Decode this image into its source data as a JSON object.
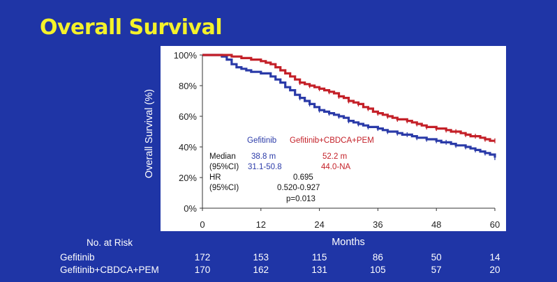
{
  "slide_title": "Overall Survival",
  "colors": {
    "background": "#1f35a6",
    "title": "#f4f22a",
    "plot_bg": "#ffffff",
    "gefitinib": "#2a3aa8",
    "combo": "#c42028",
    "text_dark": "#111111"
  },
  "chart_data": {
    "type": "line",
    "title": "Overall Survival",
    "xlabel": "Months",
    "ylabel": "Overall Survival (%)",
    "xlim": [
      0,
      60
    ],
    "ylim": [
      0,
      100
    ],
    "x_ticks": [
      0,
      12,
      24,
      36,
      48,
      60
    ],
    "y_ticks": [
      0,
      20,
      40,
      60,
      80,
      100
    ],
    "y_tick_labels": [
      "0%",
      "20%",
      "40%",
      "60%",
      "80%",
      "100%"
    ],
    "series": [
      {
        "name": "Gefitinib",
        "color": "#2a3aa8",
        "x": [
          0,
          2,
          4,
          5,
          6,
          7,
          8,
          9,
          10,
          11,
          12,
          13,
          14,
          15,
          16,
          17,
          18,
          19,
          20,
          21,
          22,
          23,
          24,
          25,
          26,
          27,
          28,
          29,
          30,
          31,
          32,
          33,
          34,
          35,
          36,
          37,
          38,
          39,
          40,
          41,
          42,
          43,
          44,
          45,
          46,
          47,
          48,
          49,
          50,
          51,
          52,
          53,
          54,
          55,
          56,
          57,
          58,
          59,
          60
        ],
        "y": [
          100,
          100,
          99,
          97,
          94,
          92,
          91,
          90,
          89,
          89,
          88,
          88,
          86,
          84,
          82,
          79,
          77,
          74,
          72,
          70,
          68,
          66,
          64,
          63,
          62,
          61,
          60,
          59,
          57,
          56,
          55,
          54,
          53,
          53,
          52,
          51,
          50,
          50,
          49,
          48,
          48,
          47,
          46,
          46,
          45,
          45,
          44,
          43,
          43,
          42,
          41,
          41,
          40,
          39,
          38,
          37,
          36,
          35,
          33
        ]
      },
      {
        "name": "Gefitinib+CBDCA+PEM",
        "color": "#c42028",
        "x": [
          0,
          4,
          6,
          7,
          8,
          9,
          10,
          11,
          12,
          13,
          14,
          15,
          16,
          17,
          18,
          19,
          20,
          21,
          22,
          23,
          24,
          25,
          26,
          27,
          28,
          29,
          30,
          31,
          32,
          33,
          34,
          35,
          36,
          37,
          38,
          39,
          40,
          41,
          42,
          43,
          44,
          45,
          46,
          47,
          48,
          49,
          50,
          51,
          52,
          53,
          54,
          55,
          56,
          57,
          58,
          59,
          60
        ],
        "y": [
          100,
          100,
          99,
          99,
          98,
          98,
          97,
          97,
          96,
          95,
          94,
          92,
          90,
          88,
          86,
          84,
          82,
          81,
          80,
          79,
          78,
          77,
          76,
          75,
          73,
          72,
          70,
          69,
          68,
          66,
          65,
          63,
          62,
          61,
          60,
          59,
          58,
          58,
          57,
          56,
          55,
          54,
          53,
          53,
          52,
          52,
          51,
          50,
          50,
          49,
          48,
          47,
          47,
          46,
          45,
          44,
          44
        ]
      }
    ]
  },
  "legend": {
    "gefitinib": "Gefitinib",
    "combo": "Gefitinib+CBDCA+PEM"
  },
  "stats": {
    "median_label": "Median",
    "ci_label": "(95%CI)",
    "gef_median": "38.8 m",
    "gef_ci": "31.1-50.8",
    "combo_median": "52.2 m",
    "combo_ci": "44.0-NA",
    "hr_label": "HR",
    "hr_ci_label": "(95%CI)",
    "hr_value": "0.695",
    "hr_ci": "0.520-0.927",
    "p_value": "p=0.013"
  },
  "risk_table": {
    "header": "No. at Risk",
    "rows": [
      {
        "label": "Gefitinib",
        "values": [
          "172",
          "153",
          "115",
          "86",
          "50",
          "14"
        ]
      },
      {
        "label": "Gefitinib+CBDCA+PEM",
        "values": [
          "170",
          "162",
          "131",
          "105",
          "57",
          "20"
        ]
      }
    ]
  }
}
